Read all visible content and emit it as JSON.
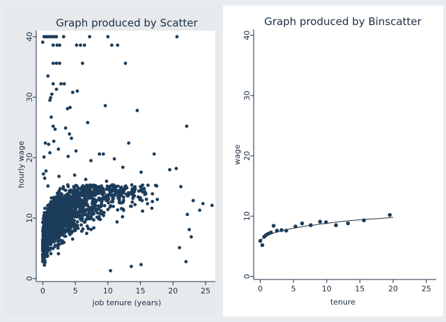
{
  "chart_data": [
    {
      "type": "scatter",
      "title": "Graph produced by Scatter",
      "xlabel": "job tenure (years)",
      "ylabel": "hourly wage",
      "xlim": [
        -1,
        26.5
      ],
      "ylim": [
        -0.5,
        41
      ],
      "xticks": [
        "0",
        "5",
        "10",
        "15",
        "20",
        "25"
      ],
      "yticks": [
        "0",
        "10",
        "20",
        "30",
        "40"
      ],
      "marker_color": "#1c3d5a",
      "dense_cloud": true,
      "points": [
        [
          0.2,
          40
        ],
        [
          0.5,
          40
        ],
        [
          0.7,
          40
        ],
        [
          1.0,
          40
        ],
        [
          1.2,
          40
        ],
        [
          1.5,
          40
        ],
        [
          1.8,
          40
        ],
        [
          2.1,
          40
        ],
        [
          3.2,
          40
        ],
        [
          7.2,
          40
        ],
        [
          10.0,
          40
        ],
        [
          20.6,
          40
        ],
        [
          0.0,
          39.1
        ],
        [
          1.6,
          38.6
        ],
        [
          2.2,
          38.6
        ],
        [
          2.6,
          38.6
        ],
        [
          5.2,
          38.6
        ],
        [
          5.8,
          38.6
        ],
        [
          6.4,
          38.6
        ],
        [
          10.6,
          38.6
        ],
        [
          11.5,
          38.6
        ],
        [
          1.6,
          35.6
        ],
        [
          2.1,
          35.6
        ],
        [
          2.6,
          35.6
        ],
        [
          6.1,
          35.6
        ],
        [
          12.7,
          35.6
        ],
        [
          0.8,
          33.5
        ],
        [
          1.6,
          32.2
        ],
        [
          2.8,
          32.2
        ],
        [
          3.3,
          32.2
        ],
        [
          2.1,
          31.3
        ],
        [
          5.3,
          31.0
        ],
        [
          4.6,
          30.8
        ],
        [
          1.4,
          30.5
        ],
        [
          1.2,
          29.9
        ],
        [
          1.1,
          29.5
        ],
        [
          9.6,
          28.6
        ],
        [
          4.2,
          28.3
        ],
        [
          3.8,
          28.1
        ],
        [
          14.5,
          27.8
        ],
        [
          1.3,
          26.7
        ],
        [
          6.9,
          25.8
        ],
        [
          1.6,
          25.2
        ],
        [
          22.1,
          25.2
        ],
        [
          3.5,
          24.9
        ],
        [
          1.9,
          24.7
        ],
        [
          4.1,
          23.9
        ],
        [
          4.4,
          23.2
        ],
        [
          1.7,
          22.7
        ],
        [
          0.4,
          22.4
        ],
        [
          0.9,
          22.2
        ],
        [
          13.2,
          22.4
        ],
        [
          2.4,
          21.4
        ],
        [
          5.1,
          21.1
        ],
        [
          1.1,
          20.8
        ],
        [
          8.7,
          20.6
        ],
        [
          9.3,
          20.6
        ],
        [
          17.1,
          20.6
        ],
        [
          0.2,
          20.1
        ],
        [
          3.9,
          20.2
        ],
        [
          11.0,
          19.8
        ],
        [
          7.4,
          19.5
        ],
        [
          0.5,
          17.8
        ],
        [
          0.1,
          17.3
        ],
        [
          4.9,
          17.1
        ],
        [
          20.5,
          18.2
        ],
        [
          19.5,
          18.0
        ],
        [
          12.3,
          18.4
        ],
        [
          15.1,
          17.6
        ],
        [
          0.3,
          16.6
        ],
        [
          2.5,
          16.9
        ],
        [
          6.6,
          16.4
        ],
        [
          9.8,
          16.1
        ],
        [
          0.8,
          15.3
        ],
        [
          14.2,
          14.8
        ],
        [
          21.2,
          15.2
        ],
        [
          11.8,
          14.5
        ],
        [
          26.0,
          12.1
        ],
        [
          24.6,
          12.4
        ],
        [
          23.1,
          12.9
        ],
        [
          24.1,
          11.3
        ],
        [
          22.2,
          10.6
        ],
        [
          22.5,
          8.1
        ],
        [
          22.8,
          6.9
        ],
        [
          21.0,
          5.1
        ],
        [
          22.0,
          2.8
        ],
        [
          13.6,
          2.0
        ],
        [
          15.1,
          2.3
        ],
        [
          10.4,
          1.3
        ]
      ]
    },
    {
      "type": "line",
      "title": "Graph produced by Binscatter",
      "xlabel": "tenure",
      "ylabel": "wage",
      "xlim": [
        -1,
        26.5
      ],
      "ylim": [
        -0.5,
        41
      ],
      "xticks": [
        "0",
        "5",
        "10",
        "15",
        "20",
        "25"
      ],
      "yticks": [
        "0",
        "10",
        "20",
        "30",
        "40"
      ],
      "marker_color": "#1c3d5a",
      "series": [
        {
          "bins": [
            [
              0.0,
              5.9
            ],
            [
              0.3,
              5.2
            ],
            [
              0.6,
              6.6
            ],
            [
              0.9,
              6.9
            ],
            [
              1.2,
              7.1
            ],
            [
              1.6,
              7.3
            ],
            [
              2.0,
              8.4
            ],
            [
              2.5,
              7.6
            ],
            [
              3.2,
              7.7
            ],
            [
              3.9,
              7.6
            ],
            [
              5.3,
              8.3
            ],
            [
              6.3,
              8.8
            ],
            [
              7.6,
              8.5
            ],
            [
              9.0,
              9.1
            ],
            [
              9.9,
              9.0
            ],
            [
              11.4,
              8.5
            ],
            [
              13.2,
              8.8
            ],
            [
              15.6,
              9.3
            ],
            [
              19.5,
              10.2
            ]
          ],
          "fit": [
            [
              0.0,
              6.0
            ],
            [
              0.5,
              6.4
            ],
            [
              1.0,
              6.8
            ],
            [
              2.0,
              7.2
            ],
            [
              3.0,
              7.5
            ],
            [
              4.0,
              7.8
            ],
            [
              5.0,
              8.0
            ],
            [
              6.0,
              8.2
            ],
            [
              7.0,
              8.4
            ],
            [
              8.0,
              8.5
            ],
            [
              9.0,
              8.7
            ],
            [
              10.0,
              8.8
            ],
            [
              12.0,
              9.1
            ],
            [
              14.0,
              9.3
            ],
            [
              16.0,
              9.5
            ],
            [
              18.0,
              9.6
            ],
            [
              20.0,
              9.8
            ]
          ]
        }
      ]
    }
  ]
}
